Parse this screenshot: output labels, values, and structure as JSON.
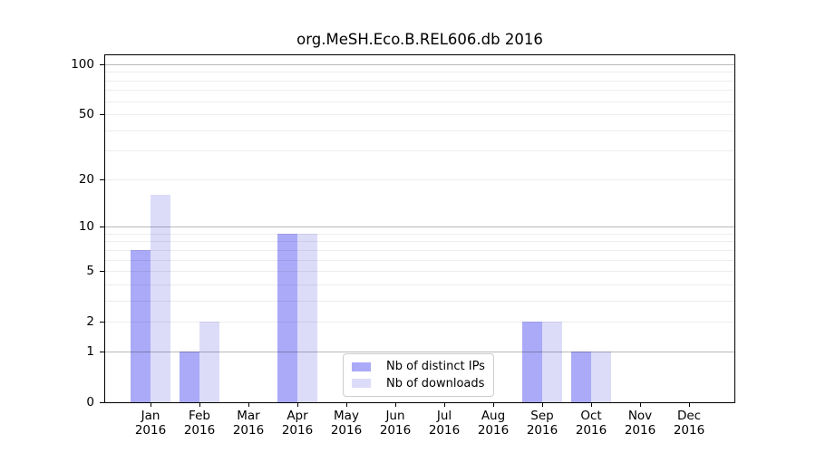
{
  "chart_data": {
    "type": "bar",
    "title": "org.MeSH.Eco.B.REL606.db 2016",
    "categories": [
      {
        "month": "Jan",
        "year": "2016"
      },
      {
        "month": "Feb",
        "year": "2016"
      },
      {
        "month": "Mar",
        "year": "2016"
      },
      {
        "month": "Apr",
        "year": "2016"
      },
      {
        "month": "May",
        "year": "2016"
      },
      {
        "month": "Jun",
        "year": "2016"
      },
      {
        "month": "Jul",
        "year": "2016"
      },
      {
        "month": "Aug",
        "year": "2016"
      },
      {
        "month": "Sep",
        "year": "2016"
      },
      {
        "month": "Oct",
        "year": "2016"
      },
      {
        "month": "Nov",
        "year": "2016"
      },
      {
        "month": "Dec",
        "year": "2016"
      }
    ],
    "series": [
      {
        "name": "Nb of distinct IPs",
        "color": "#aaaaf8",
        "values": [
          7,
          1,
          0,
          9,
          0,
          0,
          0,
          0,
          2,
          1,
          0,
          0
        ]
      },
      {
        "name": "Nb of downloads",
        "color": "#dcdcf9",
        "values": [
          16,
          2,
          0,
          9,
          0,
          0,
          0,
          0,
          2,
          1,
          0,
          0
        ]
      }
    ],
    "y_axis": {
      "scale": "log1p",
      "ylim": [
        0,
        113
      ],
      "tick_labels": [
        0,
        1,
        2,
        5,
        10,
        20,
        50,
        100
      ],
      "major_gridlines": [
        1,
        10,
        100
      ],
      "minor_gridlines": [
        2,
        3,
        4,
        5,
        6,
        7,
        8,
        9,
        20,
        30,
        40,
        50,
        60,
        70,
        80,
        90
      ]
    },
    "grid": true,
    "legend_position": "lower center",
    "xlabel": "",
    "ylabel": ""
  }
}
